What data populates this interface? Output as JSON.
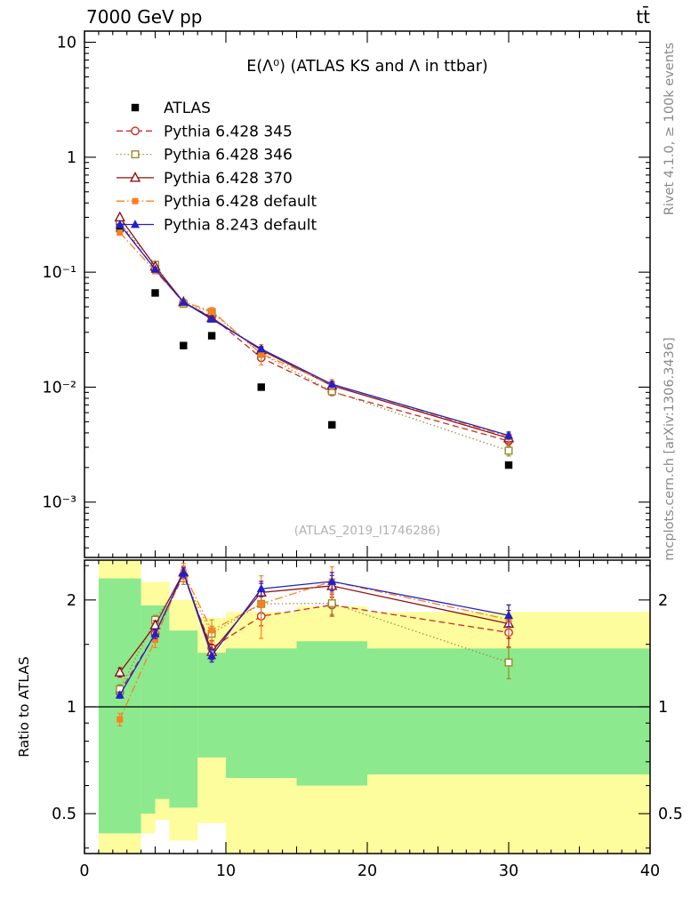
{
  "header": {
    "left_title": "7000 GeV pp",
    "right_title": "tt̄"
  },
  "watermarks": {
    "rivet": "Rivet 4.1.0, ≥ 100k events",
    "mcplots": "mcplots.cern.ch [arXiv:1306.3436]"
  },
  "plot": {
    "title": "E(Λ⁰) (ATLAS KS and Λ in ttbar)",
    "ref_label": "(ATLAS_2019_I1746286)",
    "ratio_ylabel": "Ratio to ATLAS"
  },
  "chart_data": {
    "type": "line",
    "xlim": [
      0,
      40
    ],
    "xtick_labels": [
      {
        "v": 0,
        "label": "0"
      },
      {
        "v": 10,
        "label": "10"
      },
      {
        "v": 20,
        "label": "20"
      },
      {
        "v": 30,
        "label": "30"
      },
      {
        "v": 40,
        "label": "40"
      }
    ],
    "x": [
      2.5,
      5,
      7,
      9,
      12.5,
      17.5,
      30
    ],
    "main_panel": {
      "yscale": "log",
      "ylim": [
        0.00033,
        12.5
      ],
      "ytick_labels": [
        {
          "v": 10,
          "label": "10"
        },
        {
          "v": 1,
          "label": "1"
        },
        {
          "v": 0.1,
          "label": "10⁻¹"
        },
        {
          "v": 0.01,
          "label": "10⁻²"
        },
        {
          "v": 0.001,
          "label": "10⁻³"
        }
      ]
    },
    "ratio_panel": {
      "yscale": "log",
      "ylim": [
        0.386,
        2.59
      ],
      "ref_line": 1,
      "ytick_labels": [
        {
          "v": 2,
          "label": "2"
        },
        {
          "v": 1,
          "label": "1"
        },
        {
          "v": 0.5,
          "label": "0.5"
        }
      ],
      "bands": {
        "yellow": {
          "color": "#fdfd9d",
          "steps": [
            [
              1,
              4,
              0.386,
              2.59
            ],
            [
              4,
              5,
              0.44,
              2.25
            ],
            [
              5,
              6,
              0.48,
              2.25
            ],
            [
              6,
              8,
              0.42,
              2.0
            ],
            [
              8,
              10,
              0.47,
              1.78
            ],
            [
              10,
              15,
              0.386,
              1.85
            ],
            [
              15,
              20,
              0.386,
              1.92
            ],
            [
              20,
              40,
              0.386,
              1.85
            ]
          ]
        },
        "green": {
          "color": "#8de98d",
          "steps": [
            [
              1,
              4,
              0.44,
              2.3
            ],
            [
              4,
              5,
              0.5,
              1.93
            ],
            [
              5,
              6,
              0.55,
              1.93
            ],
            [
              6,
              8,
              0.52,
              1.64
            ],
            [
              8,
              10,
              0.72,
              1.42
            ],
            [
              10,
              15,
              0.63,
              1.46
            ],
            [
              15,
              20,
              0.6,
              1.53
            ],
            [
              20,
              40,
              0.645,
              1.46
            ]
          ]
        }
      }
    },
    "series": [
      {
        "name": "ATLAS",
        "color": "#000000",
        "marker": "square-filled",
        "line": "none",
        "reference": true,
        "values": [
          0.24,
          0.066,
          0.023,
          0.028,
          0.01,
          0.0047,
          0.0021
        ],
        "err_rel": [
          0,
          0,
          0,
          0,
          0,
          0,
          0
        ]
      },
      {
        "name": "Pythia 6.428 345",
        "color": "#cc2b2b",
        "marker": "circle-open",
        "line": "dashed",
        "values": [
          0.264,
          0.106,
          0.054,
          0.041,
          0.018,
          0.0091,
          0.0034
        ],
        "err_rel": [
          0.03,
          0.03,
          0.04,
          0.05,
          0.06,
          0.07,
          0.09
        ]
      },
      {
        "name": "Pythia 6.428 346",
        "color": "#9a8a2e",
        "marker": "square-open",
        "line": "dotted",
        "values": [
          0.269,
          0.116,
          0.053,
          0.045,
          0.0195,
          0.0092,
          0.0028
        ],
        "err_rel": [
          0.03,
          0.03,
          0.04,
          0.05,
          0.06,
          0.07,
          0.1
        ]
      },
      {
        "name": "Pythia 6.428 370",
        "color": "#8f1212",
        "marker": "triangle-open",
        "line": "solid",
        "values": [
          0.3,
          0.112,
          0.055,
          0.04,
          0.021,
          0.0103,
          0.0036
        ],
        "err_rel": [
          0.03,
          0.03,
          0.04,
          0.05,
          0.06,
          0.07,
          0.09
        ]
      },
      {
        "name": "Pythia 6.428 default",
        "color": "#ff7f1f",
        "marker": "square-filled",
        "line": "dashdot",
        "values": [
          0.221,
          0.102,
          0.055,
          0.046,
          0.0195,
          0.0106,
          0.0037
        ],
        "err_rel": [
          0.04,
          0.05,
          0.06,
          0.07,
          0.2,
          0.1,
          0.1
        ]
      },
      {
        "name": "Pythia 8.243 default",
        "color": "#2020cc",
        "marker": "triangle-filled",
        "line": "solid",
        "values": [
          0.259,
          0.106,
          0.055,
          0.039,
          0.0215,
          0.0106,
          0.0038
        ],
        "err_rel": [
          0.02,
          0.03,
          0.03,
          0.04,
          0.05,
          0.06,
          0.07
        ]
      }
    ]
  }
}
